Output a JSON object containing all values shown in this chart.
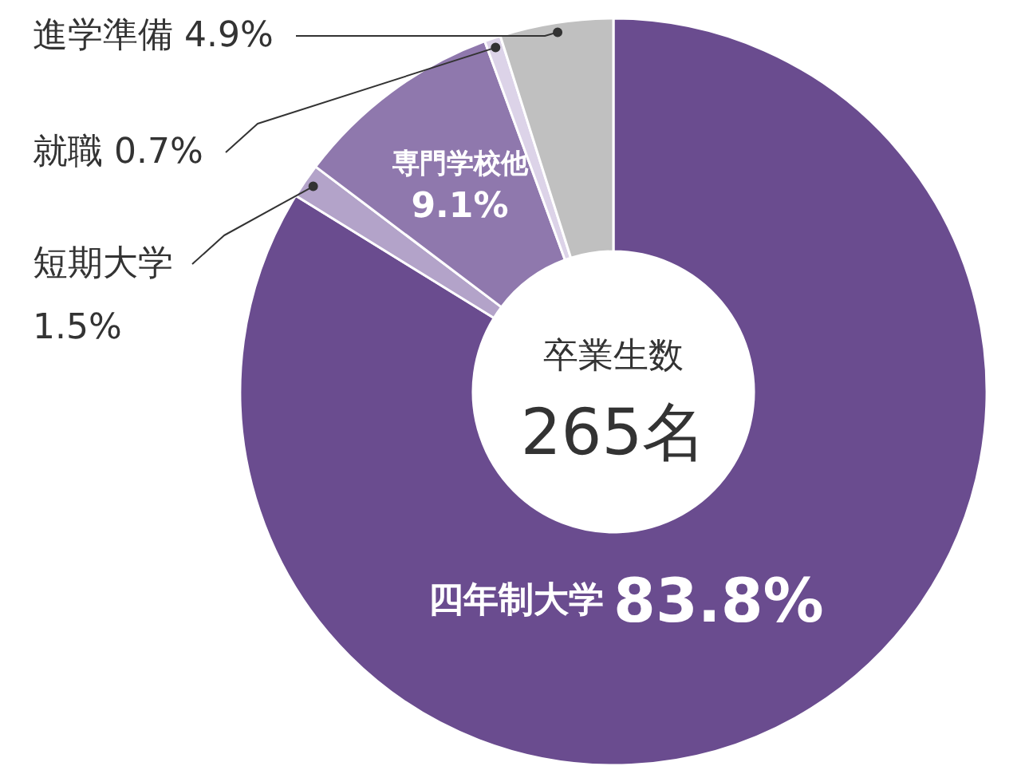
{
  "chart_data": {
    "type": "donut",
    "categories": [
      "四年制大学",
      "短期大学",
      "専門学校他",
      "就職",
      "進学準備"
    ],
    "values": [
      83.8,
      1.5,
      9.1,
      0.7,
      4.9
    ],
    "colors": [
      "#6a4c8f",
      "#b3a3c9",
      "#8f78ad",
      "#dcd3e8",
      "#c0c0c0"
    ],
    "value_labels": [
      "83.8%",
      "1.5%",
      "9.1%",
      "0.7%",
      "4.9%"
    ],
    "annotations": [
      "卒業生数",
      "265名"
    ]
  }
}
